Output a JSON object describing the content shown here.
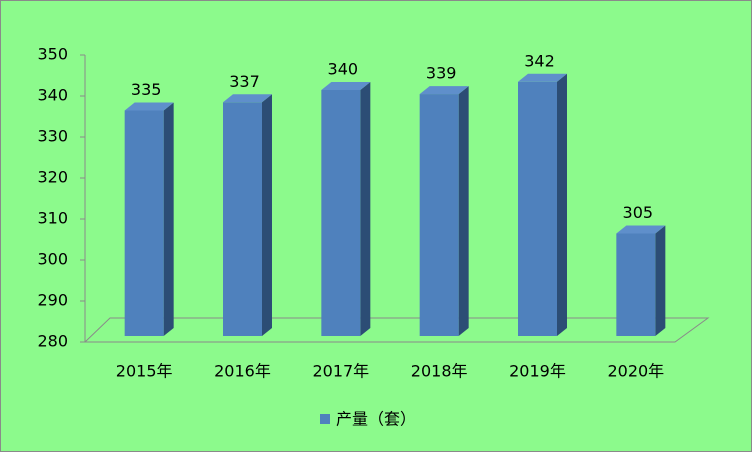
{
  "chart_data": {
    "type": "bar3d",
    "categories": [
      "2015年",
      "2016年",
      "2017年",
      "2018年",
      "2019年",
      "2020年"
    ],
    "series": [
      {
        "name": "产量（套）",
        "color": "#4f81bd",
        "values": [
          335,
          337,
          340,
          339,
          342,
          305
        ]
      }
    ],
    "ylim": [
      280,
      350
    ],
    "yticks": [
      280,
      290,
      300,
      310,
      320,
      330,
      340,
      350
    ],
    "legend": "bottom",
    "background": "#8cfa8c"
  }
}
